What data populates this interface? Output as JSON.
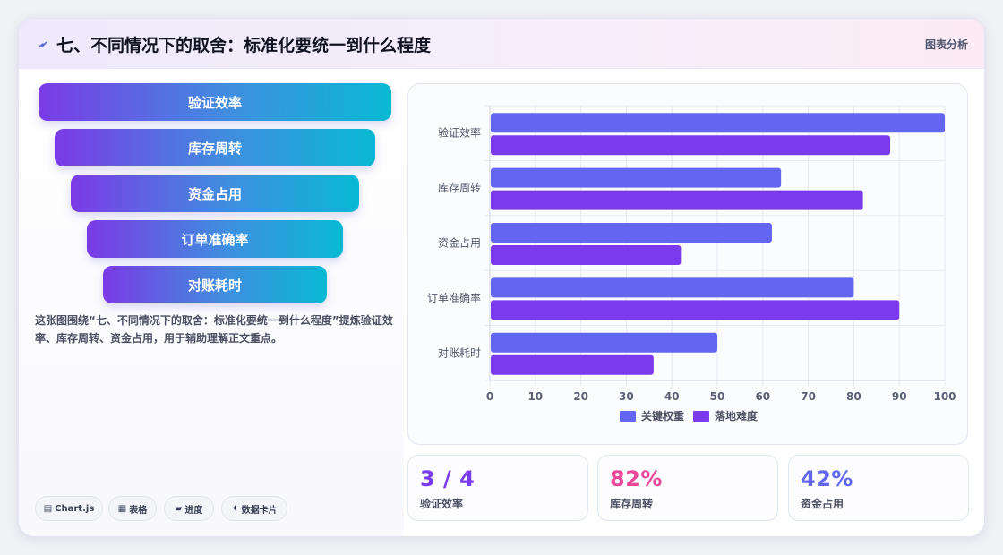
{
  "header": {
    "title": "七、不同情况下的取舍：标准化要统一到什么程度",
    "tag": "图表分析"
  },
  "funnel": [
    "验证效率",
    "库存周转",
    "资金占用",
    "订单准确率",
    "对账耗时"
  ],
  "description": "这张图围绕“七、不同情况下的取舍：标准化要统一到什么程度”提炼验证效率、库存周转、资金占用，用于辅助理解正文重点。",
  "chips": [
    {
      "icon": "▤",
      "label": "Chart.js"
    },
    {
      "icon": "▦",
      "label": "表格"
    },
    {
      "icon": "▰",
      "label": "进度"
    },
    {
      "icon": "✦",
      "label": "数据卡片"
    }
  ],
  "stats": [
    {
      "value": "3 / 4",
      "label": "验证效率",
      "color": "#7c3aed"
    },
    {
      "value": "82%",
      "label": "库存周转",
      "color": "#ec4899"
    },
    {
      "value": "42%",
      "label": "资金占用",
      "color": "#6366f1"
    }
  ],
  "chart_data": {
    "type": "bar",
    "orientation": "horizontal",
    "categories": [
      "验证效率",
      "库存周转",
      "资金占用",
      "订单准确率",
      "对账耗时"
    ],
    "series": [
      {
        "name": "关键权重",
        "values": [
          100,
          64,
          62,
          80,
          50
        ],
        "color": "#6366f1"
      },
      {
        "name": "落地难度",
        "values": [
          88,
          82,
          42,
          90,
          36
        ],
        "color": "#7c3aed"
      }
    ],
    "xlim": [
      0,
      100
    ],
    "xticks": [
      "0",
      "10",
      "20",
      "30",
      "40",
      "50",
      "60",
      "70",
      "80",
      "90",
      "100"
    ],
    "grid": true,
    "legend": "bottom"
  }
}
